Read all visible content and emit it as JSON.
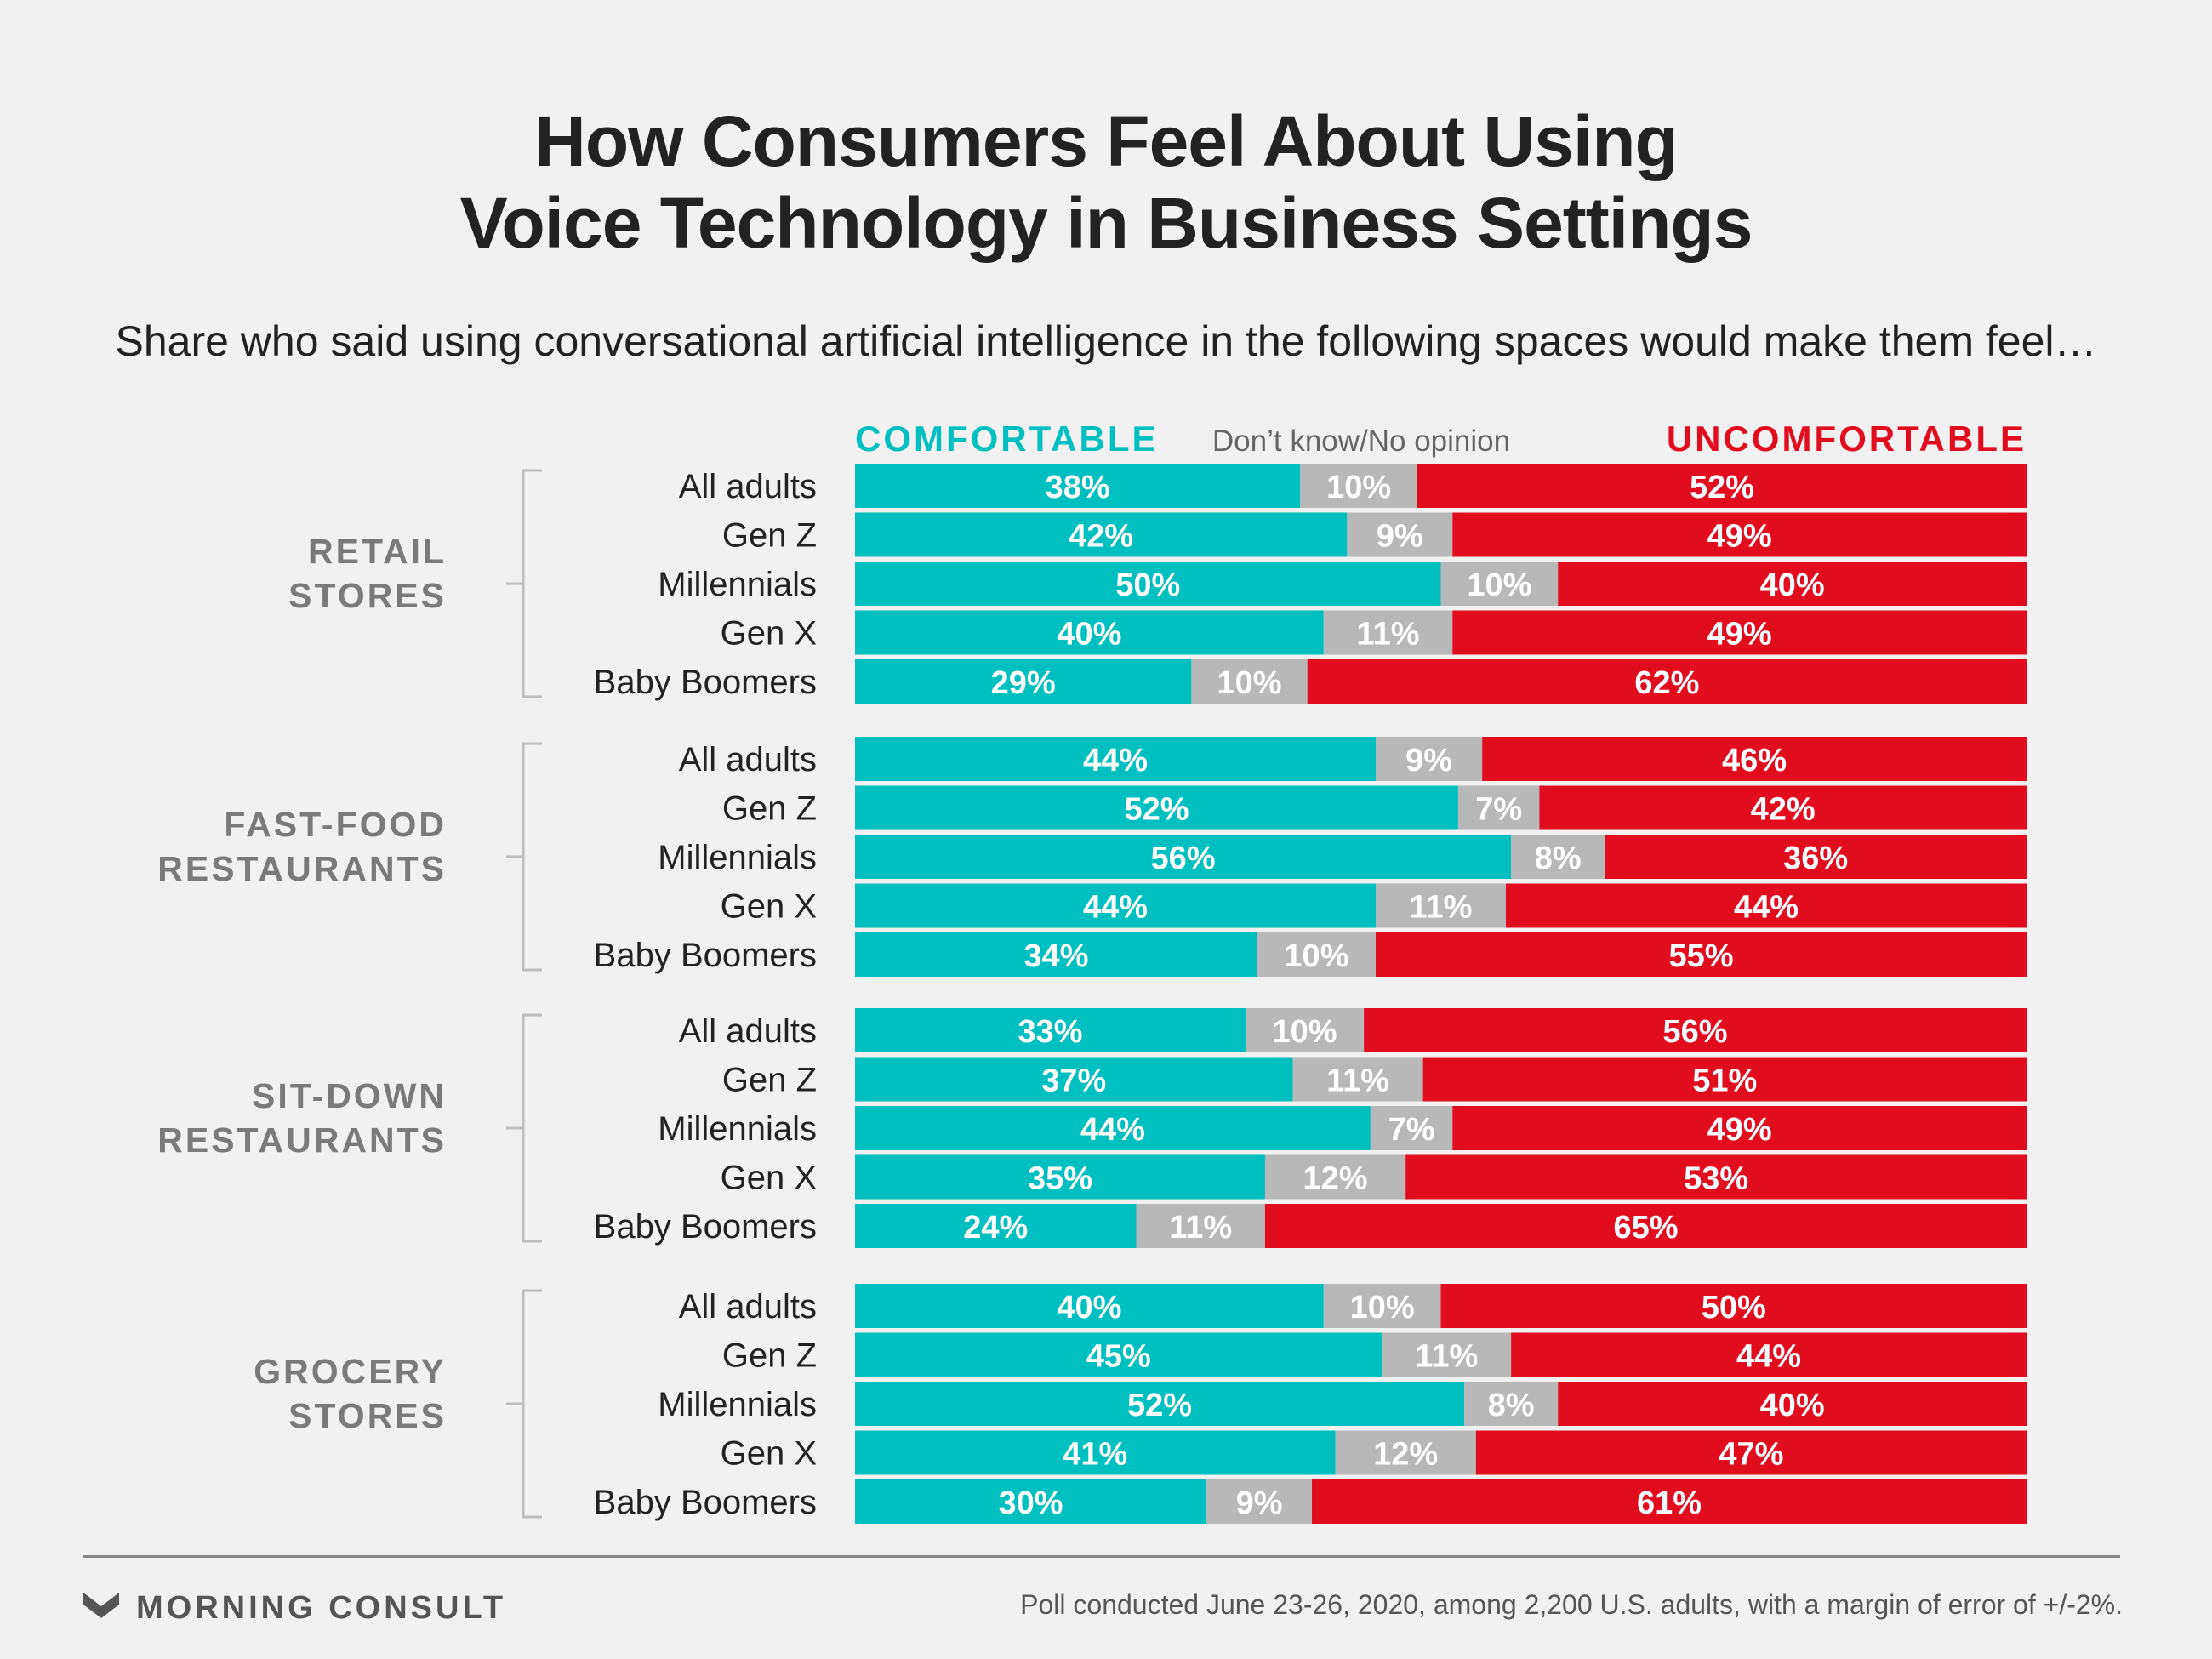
{
  "title_lines": [
    "How Consumers Feel About Using",
    "Voice Technology in Business Settings"
  ],
  "subtitle": "Share who said using conversational artificial intelligence in the following spaces would make them feel…",
  "footer": {
    "brand": "MORNING CONSULT",
    "brand_icon": "morning-consult-logo-icon",
    "note": "Poll conducted June 23-26, 2020, among 2,200 U.S. adults, with a margin of error of +/-2%."
  },
  "colors": {
    "comfortable": "#00bfc0",
    "neutral": "#b8b8b8",
    "uncomfortable": "#e10c1e",
    "group_label": "#7a7a7a",
    "text": "#222222"
  },
  "chart_data": {
    "type": "bar",
    "orientation": "horizontal",
    "stacked": true,
    "normalized": true,
    "series": [
      {
        "name": "COMFORTABLE"
      },
      {
        "name": "Don’t know/No opinion"
      },
      {
        "name": "UNCOMFORTABLE"
      }
    ],
    "groups": [
      {
        "label": [
          "RETAIL",
          "STORES"
        ],
        "rows": [
          {
            "label": "All adults",
            "values": [
              38,
              10,
              52
            ]
          },
          {
            "label": "Gen Z",
            "values": [
              42,
              9,
              49
            ]
          },
          {
            "label": "Millennials",
            "values": [
              50,
              10,
              40
            ]
          },
          {
            "label": "Gen X",
            "values": [
              40,
              11,
              49
            ]
          },
          {
            "label": "Baby Boomers",
            "values": [
              29,
              10,
              62
            ]
          }
        ]
      },
      {
        "label": [
          "FAST-FOOD",
          "RESTAURANTS"
        ],
        "rows": [
          {
            "label": "All adults",
            "values": [
              44,
              9,
              46
            ]
          },
          {
            "label": "Gen Z",
            "values": [
              52,
              7,
              42
            ]
          },
          {
            "label": "Millennials",
            "values": [
              56,
              8,
              36
            ]
          },
          {
            "label": "Gen X",
            "values": [
              44,
              11,
              44
            ]
          },
          {
            "label": "Baby Boomers",
            "values": [
              34,
              10,
              55
            ]
          }
        ]
      },
      {
        "label": [
          "SIT-DOWN",
          "RESTAURANTS"
        ],
        "rows": [
          {
            "label": "All adults",
            "values": [
              33,
              10,
              56
            ]
          },
          {
            "label": "Gen Z",
            "values": [
              37,
              11,
              51
            ]
          },
          {
            "label": "Millennials",
            "values": [
              44,
              7,
              49
            ]
          },
          {
            "label": "Gen X",
            "values": [
              35,
              12,
              53
            ]
          },
          {
            "label": "Baby Boomers",
            "values": [
              24,
              11,
              65
            ]
          }
        ]
      },
      {
        "label": [
          "GROCERY",
          "STORES"
        ],
        "rows": [
          {
            "label": "All adults",
            "values": [
              40,
              10,
              50
            ]
          },
          {
            "label": "Gen Z",
            "values": [
              45,
              11,
              44
            ]
          },
          {
            "label": "Millennials",
            "values": [
              52,
              8,
              40
            ]
          },
          {
            "label": "Gen X",
            "values": [
              41,
              12,
              47
            ]
          },
          {
            "label": "Baby Boomers",
            "values": [
              30,
              9,
              61
            ]
          }
        ]
      }
    ]
  }
}
